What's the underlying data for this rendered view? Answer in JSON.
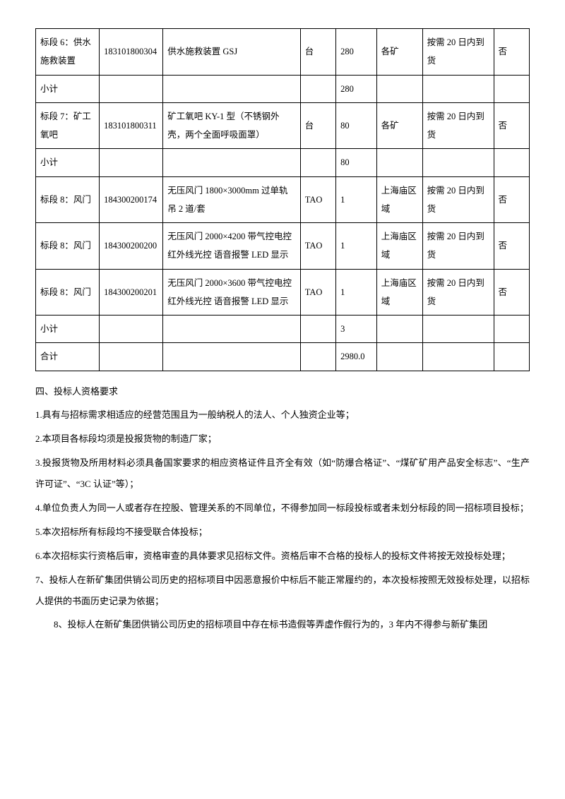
{
  "table": {
    "rows": [
      {
        "a": "标段 6：供水施救装置",
        "b": "183101800304",
        "c": "供水施救装置  GSJ",
        "d": "台",
        "e": "280",
        "f": "各矿",
        "g": "按需 20 日内到货",
        "h": "否"
      },
      {
        "a": "小计",
        "b": "",
        "c": "",
        "d": "",
        "e": "280",
        "f": "",
        "g": "",
        "h": ""
      },
      {
        "a": "标段 7：矿工氧吧",
        "b": "183101800311",
        "c": "矿工氧吧 KY-1 型（不锈钢外壳，两个全面呼吸面罩）",
        "d": "台",
        "e": "80",
        "f": "各矿",
        "g": "按需 20 日内到货",
        "h": "否"
      },
      {
        "a": "小计",
        "b": "",
        "c": "",
        "d": "",
        "e": "80",
        "f": "",
        "g": "",
        "h": ""
      },
      {
        "a": "标段 8：风门",
        "b": "184300200174",
        "c": "无压风门 1800×3000mm 过单轨吊  2 道/套",
        "d": "TAO",
        "e": "1",
        "f": "上海庙区域",
        "g": "按需 20 日内到货",
        "h": "否"
      },
      {
        "a": "标段 8：风门",
        "b": "184300200200",
        "c": "无压风门 2000×4200  带气控电控  红外线光控  语音报警 LED 显示",
        "d": "TAO",
        "e": "1",
        "f": "上海庙区域",
        "g": "按需 20 日内到货",
        "h": "否"
      },
      {
        "a": "标段 8：风门",
        "b": "184300200201",
        "c": "无压风门 2000×3600  带气控电控  红外线光控  语音报警 LED 显示",
        "d": "TAO",
        "e": "1",
        "f": "上海庙区域",
        "g": "按需 20 日内到货",
        "h": "否"
      },
      {
        "a": "小计",
        "b": "",
        "c": "",
        "d": "",
        "e": "3",
        "f": "",
        "g": "",
        "h": ""
      },
      {
        "a": "合计",
        "b": "",
        "c": "",
        "d": "",
        "e": "2980.0",
        "f": "",
        "g": "",
        "h": ""
      }
    ]
  },
  "body": {
    "heading": "四、投标人资格要求",
    "p1": "1.具有与招标需求相适应的经营范围且为一般纳税人的法人、个人独资企业等；",
    "p2": "2.本项目各标段均须是投报货物的制造厂家；",
    "p3": "3.投报货物及所用材料必须具备国家要求的相应资格证件且齐全有效（如“防爆合格证”、“煤矿矿用产品安全标志”、“生产许可证”、“3C 认证”等）；",
    "p4": "4.单位负责人为同一人或者存在控股、管理关系的不同单位，不得参加同一标段投标或者未划分标段的同一招标项目投标；",
    "p5": "5.本次招标所有标段均不接受联合体投标；",
    "p6": "6.本次招标实行资格后审，资格审查的具体要求见招标文件。资格后审不合格的投标人的投标文件将按无效投标处理；",
    "p7": "7、投标人在新矿集团供销公司历史的招标项目中因恶意报价中标后不能正常履约的，本次投标按照无效投标处理，以招标人提供的书面历史记录为依据；",
    "p8": "8、投标人在新矿集团供销公司历史的招标项目中存在标书造假等弄虚作假行为的，3 年内不得参与新矿集团"
  }
}
